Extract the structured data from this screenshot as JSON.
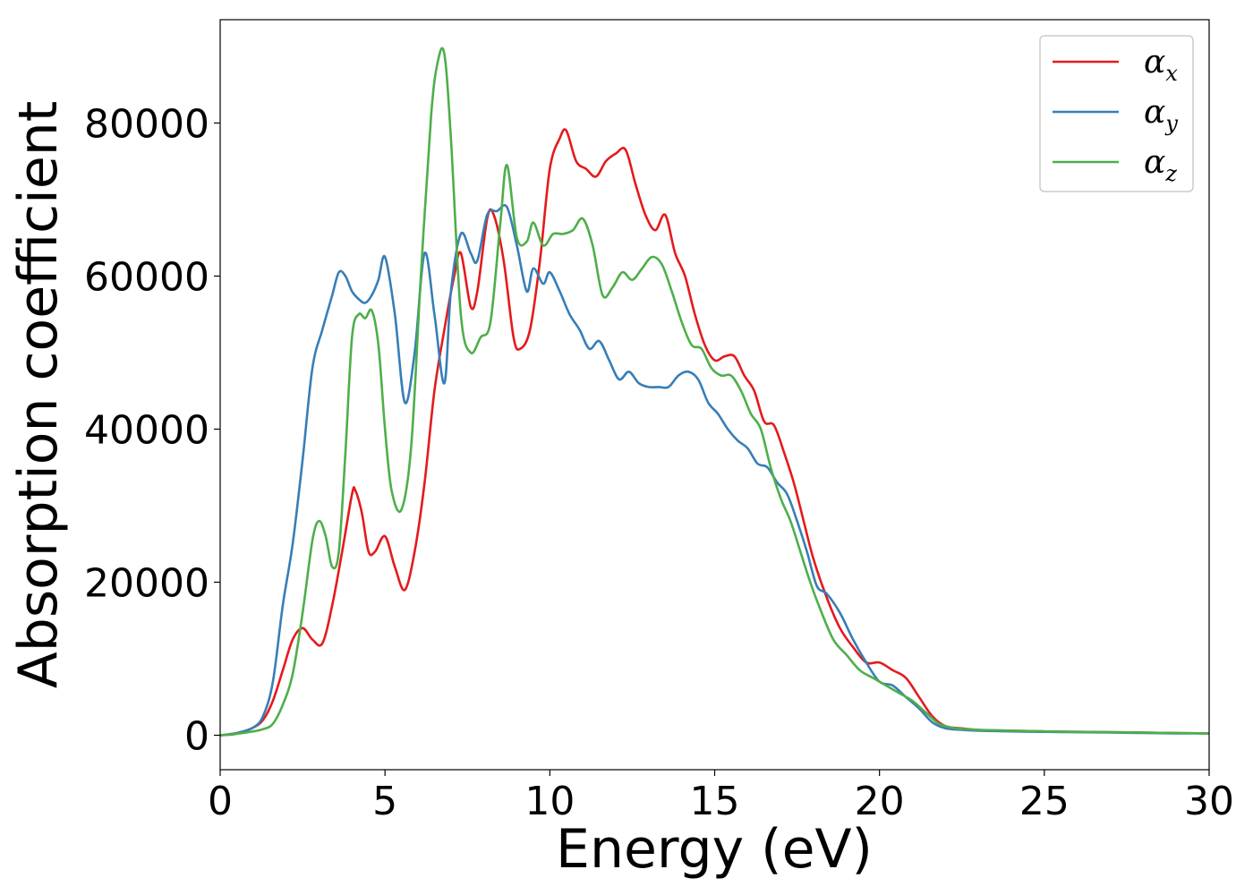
{
  "chart_data": {
    "type": "line",
    "title": "",
    "xlabel": "Energy (eV)",
    "ylabel": "Absorption coefficient",
    "xlim": [
      0,
      30
    ],
    "ylim": [
      -4500,
      93500
    ],
    "xticks": [
      0,
      5,
      10,
      15,
      20,
      25,
      30
    ],
    "yticks": [
      0,
      20000,
      40000,
      60000,
      80000
    ],
    "grid": false,
    "legend": {
      "location": "upper right"
    },
    "series": [
      {
        "name": "α_x",
        "symbol": "α",
        "subscript": "x",
        "color": "#e41a1c",
        "x": [
          0,
          0.5,
          1.0,
          1.3,
          1.6,
          1.9,
          2.2,
          2.5,
          2.8,
          3.1,
          3.4,
          3.7,
          4.0,
          4.1,
          4.3,
          4.5,
          4.7,
          5.0,
          5.3,
          5.6,
          5.9,
          6.2,
          6.5,
          6.8,
          7.1,
          7.3,
          7.6,
          7.8,
          8.1,
          8.3,
          8.6,
          8.9,
          9.1,
          9.4,
          9.7,
          10.0,
          10.3,
          10.5,
          10.8,
          11.1,
          11.4,
          11.7,
          12.0,
          12.3,
          12.6,
          12.9,
          13.2,
          13.5,
          13.8,
          14.1,
          14.4,
          14.7,
          15.0,
          15.3,
          15.6,
          15.9,
          16.2,
          16.5,
          16.8,
          17.1,
          17.4,
          17.7,
          18.0,
          18.4,
          18.8,
          19.2,
          19.6,
          20.0,
          20.4,
          20.8,
          21.2,
          21.6,
          22.0,
          22.5,
          23.0,
          24.0,
          25.0,
          26.0,
          27.0,
          28.0,
          29.0,
          30.0
        ],
        "y": [
          0,
          200,
          1000,
          2000,
          4500,
          8500,
          12500,
          14000,
          12500,
          12000,
          17000,
          24000,
          31500,
          32000,
          29000,
          24000,
          24000,
          26000,
          22000,
          19000,
          24000,
          33000,
          45000,
          53000,
          60000,
          63000,
          56000,
          58000,
          67500,
          68000,
          62000,
          52000,
          50500,
          53000,
          62000,
          74000,
          78000,
          79000,
          75000,
          74000,
          73000,
          75000,
          76000,
          76500,
          72000,
          68000,
          66000,
          68000,
          63000,
          60000,
          55000,
          51000,
          49000,
          49500,
          49500,
          47000,
          45000,
          41000,
          40500,
          37000,
          33000,
          28000,
          23000,
          18000,
          14000,
          11500,
          9500,
          9500,
          8500,
          7500,
          5000,
          2500,
          1200,
          900,
          700,
          600,
          500,
          450,
          400,
          350,
          300,
          250
        ]
      },
      {
        "name": "α_y",
        "symbol": "α",
        "subscript": "y",
        "color": "#377eb8",
        "x": [
          0,
          0.5,
          1.0,
          1.3,
          1.6,
          1.9,
          2.2,
          2.5,
          2.8,
          3.1,
          3.4,
          3.6,
          3.8,
          4.0,
          4.2,
          4.4,
          4.6,
          4.8,
          5.0,
          5.3,
          5.6,
          5.9,
          6.2,
          6.5,
          6.8,
          7.0,
          7.3,
          7.6,
          7.8,
          8.1,
          8.4,
          8.7,
          9.0,
          9.3,
          9.5,
          9.8,
          10.0,
          10.3,
          10.6,
          10.9,
          11.2,
          11.5,
          11.8,
          12.1,
          12.4,
          12.7,
          13.0,
          13.3,
          13.6,
          13.9,
          14.2,
          14.5,
          14.8,
          15.1,
          15.4,
          15.7,
          16.0,
          16.3,
          16.6,
          16.9,
          17.2,
          17.5,
          17.8,
          18.1,
          18.4,
          18.8,
          19.2,
          19.6,
          20.0,
          20.4,
          20.8,
          21.2,
          21.6,
          22.0,
          22.5,
          23.0,
          24.0,
          25.0,
          26.0,
          27.0,
          28.0,
          29.0,
          30.0
        ],
        "y": [
          0,
          300,
          1000,
          2500,
          7000,
          17000,
          25000,
          36000,
          48000,
          53000,
          57500,
          60500,
          60000,
          58000,
          57000,
          56500,
          57500,
          59500,
          62500,
          55000,
          43500,
          50000,
          63000,
          55000,
          46000,
          58000,
          65500,
          63000,
          62000,
          68000,
          68500,
          69000,
          64000,
          58000,
          61000,
          59000,
          60500,
          58000,
          55000,
          53000,
          50500,
          51500,
          49000,
          46500,
          47500,
          46000,
          45500,
          45500,
          45500,
          47000,
          47500,
          46500,
          43500,
          42000,
          40000,
          38500,
          37500,
          35500,
          35000,
          33000,
          31500,
          28000,
          24000,
          19500,
          18500,
          16000,
          12500,
          9500,
          7000,
          6500,
          5000,
          3500,
          1700,
          900,
          700,
          600,
          500,
          450,
          400,
          350,
          300,
          250,
          250
        ]
      },
      {
        "name": "α_z",
        "symbol": "α",
        "subscript": "z",
        "color": "#4daf4a",
        "x": [
          0,
          0.5,
          1.0,
          1.3,
          1.6,
          1.9,
          2.2,
          2.5,
          2.8,
          3.0,
          3.2,
          3.4,
          3.6,
          3.8,
          4.0,
          4.2,
          4.4,
          4.6,
          4.8,
          5.0,
          5.2,
          5.5,
          5.8,
          6.1,
          6.4,
          6.6,
          6.8,
          7.0,
          7.3,
          7.6,
          7.9,
          8.2,
          8.5,
          8.7,
          9.0,
          9.3,
          9.5,
          9.8,
          10.1,
          10.4,
          10.7,
          11.0,
          11.3,
          11.6,
          11.9,
          12.2,
          12.5,
          12.8,
          13.1,
          13.4,
          13.7,
          14.0,
          14.3,
          14.6,
          14.9,
          15.2,
          15.5,
          15.8,
          16.1,
          16.4,
          16.7,
          17.0,
          17.3,
          17.6,
          17.9,
          18.2,
          18.6,
          19.0,
          19.4,
          19.8,
          20.2,
          20.6,
          21.0,
          21.4,
          21.8,
          22.2,
          22.6,
          23.0,
          24.0,
          25.0,
          26.0,
          27.0,
          28.0,
          29.0,
          30.0
        ],
        "y": [
          0,
          200,
          500,
          800,
          1500,
          4000,
          8000,
          16000,
          25500,
          28000,
          26000,
          22000,
          24000,
          37000,
          52000,
          55000,
          54500,
          55500,
          51000,
          40000,
          32000,
          29500,
          38000,
          61000,
          81000,
          88000,
          89000,
          78000,
          55000,
          50000,
          52000,
          54000,
          67000,
          74500,
          65000,
          64500,
          67000,
          64000,
          65500,
          65500,
          66000,
          67500,
          64000,
          57500,
          58500,
          60500,
          59500,
          61000,
          62500,
          61500,
          58000,
          54000,
          51000,
          50500,
          48000,
          47000,
          47000,
          45000,
          42000,
          40000,
          35000,
          31000,
          28000,
          24000,
          20000,
          16500,
          12500,
          10500,
          8500,
          7500,
          6500,
          5500,
          4500,
          3000,
          1500,
          1000,
          800,
          700,
          600,
          500,
          450,
          400,
          350,
          300,
          250
        ]
      }
    ]
  }
}
